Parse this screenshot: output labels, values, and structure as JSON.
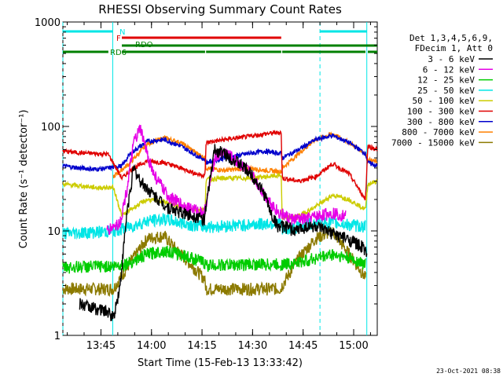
{
  "chart_data": {
    "type": "line",
    "title": "RHESSI Observing Summary Count Rates",
    "xlabel": "Start Time (15-Feb-13 13:33:42)",
    "ylabel": "Count Rate (s⁻¹ detector⁻¹)",
    "yscale": "log",
    "ylim": [
      1,
      1000
    ],
    "xlim_minutes": [
      0,
      93.3
    ],
    "x_ticks": [
      "13:45",
      "14:00",
      "14:15",
      "14:30",
      "14:45",
      "15:00"
    ],
    "y_ticks": [
      "1",
      "10",
      "100",
      "1000"
    ],
    "legend_header": [
      "Det 1,3,4,5,6,9,",
      "FDecim 1, Att 0"
    ],
    "legend_position": "right",
    "timestamp": "23-Oct-2021 08:38",
    "flags": [
      {
        "label": "N",
        "color": "#00e6e6",
        "segments": [
          [
            0,
            14.8
          ],
          [
            76.3,
            90.2
          ]
        ]
      },
      {
        "label": "F",
        "color": "#e00000",
        "segments": [
          [
            17.5,
            64.8
          ]
        ]
      },
      {
        "label": "RDO",
        "color": "#008000",
        "segments": [
          [
            17.5,
            93.3
          ]
        ]
      },
      {
        "label": "RD6",
        "color": "#008000",
        "segments": [
          [
            0,
            13.5
          ],
          [
            17.5,
            42.2
          ],
          [
            42.5,
            64.8
          ],
          [
            65.1,
            89.8
          ],
          [
            90.5,
            93.3
          ]
        ]
      }
    ],
    "night_boundaries": [
      [
        0,
        14.8
      ],
      [
        76.3,
        90.2
      ]
    ],
    "series": [
      {
        "name": "3 - 6 keV",
        "color": "#000000",
        "x": [
          5,
          13,
          15,
          17,
          19,
          21,
          23,
          27,
          31,
          35,
          39,
          42,
          45,
          48,
          52,
          56,
          60,
          62,
          64,
          66,
          69,
          72,
          75,
          78,
          82,
          86,
          89,
          90.3
        ],
        "y": [
          2.0,
          1.7,
          1.5,
          3.0,
          15.0,
          40.0,
          30.0,
          22.0,
          17.0,
          15.0,
          14.0,
          13.0,
          60.0,
          55.0,
          45.0,
          35.0,
          22.0,
          14.0,
          11.0,
          11.0,
          10.0,
          11.0,
          11.0,
          10.0,
          9.0,
          8.0,
          7.0,
          6.0
        ]
      },
      {
        "name": "6 - 12 keV",
        "color": "#e600e6",
        "x": [
          13,
          15,
          17,
          19,
          21,
          23,
          25,
          27,
          31,
          35,
          39,
          42,
          45,
          48,
          52,
          56,
          60,
          64,
          68,
          72,
          76,
          80,
          84
        ],
        "y": [
          10.0,
          11.0,
          12.0,
          25.0,
          70.0,
          95.0,
          55.0,
          35.0,
          22.0,
          18.0,
          16.0,
          15.0,
          50.0,
          58.0,
          45.0,
          35.0,
          22.0,
          15.0,
          13.0,
          13.0,
          14.0,
          15.0,
          14.0
        ]
      },
      {
        "name": "12 - 25 keV",
        "color": "#00cc00",
        "x": [
          0,
          10,
          15,
          20,
          25,
          30,
          35,
          42,
          42.5,
          55,
          64.8,
          65,
          70,
          75,
          80,
          85,
          90
        ],
        "y": [
          4.5,
          4.6,
          4.6,
          5.0,
          6.0,
          6.5,
          6.0,
          5.0,
          4.7,
          4.8,
          4.8,
          4.8,
          5.0,
          5.5,
          6.0,
          5.5,
          4.8
        ]
      },
      {
        "name": "25 - 50 keV",
        "color": "#00e6e6",
        "x": [
          0,
          10,
          15,
          20,
          25,
          30,
          35,
          42,
          42.5,
          55,
          64.8,
          65,
          70,
          75,
          80,
          85,
          90
        ],
        "y": [
          9.5,
          9.8,
          10.0,
          11.0,
          12.5,
          13.0,
          12.0,
          11.0,
          11.0,
          11.5,
          12.0,
          10.0,
          11.0,
          12.0,
          12.0,
          11.5,
          11.0
        ]
      },
      {
        "name": "50 - 100 keV",
        "color": "#cccc00",
        "x": [
          0,
          5,
          10,
          15,
          17.5,
          20,
          25,
          30,
          35,
          40,
          42.2,
          42.5,
          48,
          55,
          60,
          64.8,
          65.1,
          70,
          75,
          80,
          85,
          89.8,
          90.5,
          93.3
        ],
        "y": [
          28,
          27,
          26,
          26,
          14,
          16,
          20,
          19,
          17,
          16,
          16,
          31,
          32,
          32,
          33,
          34,
          13,
          14,
          17,
          22,
          20,
          16,
          28,
          30
        ]
      },
      {
        "name": "100 - 300 keV",
        "color": "#e00000",
        "x": [
          0,
          5,
          10,
          13.5,
          17.5,
          20,
          25,
          30,
          35,
          40,
          42.2,
          42.5,
          48,
          55,
          60,
          64.8,
          65.1,
          70,
          75,
          80,
          85,
          89.8,
          90.5,
          93.3
        ],
        "y": [
          58,
          56,
          55,
          54,
          32,
          38,
          47,
          45,
          40,
          35,
          34,
          70,
          75,
          80,
          85,
          88,
          32,
          30,
          33,
          44,
          35,
          20,
          65,
          60
        ]
      },
      {
        "name": "300 - 800 keV",
        "color": "#0000cc",
        "x": [
          0,
          5,
          10,
          13.5,
          17.5,
          20,
          25,
          30,
          35,
          40,
          42.2,
          42.5,
          48,
          55,
          60,
          64.8,
          65.1,
          70,
          75,
          80,
          85,
          89.8,
          90.5,
          93.3
        ],
        "y": [
          42,
          40,
          39,
          40,
          42,
          55,
          72,
          75,
          65,
          52,
          48,
          45,
          50,
          55,
          58,
          55,
          50,
          60,
          75,
          82,
          70,
          55,
          45,
          42
        ]
      },
      {
        "name": "800 - 7000 keV",
        "color": "#ff8000",
        "x": [
          15,
          20,
          25,
          30,
          35,
          40,
          42.2,
          42.5,
          48,
          55,
          60,
          64.8,
          65.1,
          70,
          75,
          80,
          85,
          89.8,
          90.5,
          93.3
        ],
        "y": [
          33,
          45,
          68,
          78,
          70,
          55,
          50,
          40,
          38,
          40,
          38,
          37,
          40,
          55,
          75,
          85,
          70,
          55,
          48,
          46
        ]
      },
      {
        "name": "7000 - 15000 keV",
        "color": "#8c7a00",
        "x": [
          0,
          10,
          15,
          20,
          25,
          30,
          35,
          42,
          42.5,
          55,
          64.8,
          65,
          70,
          75,
          80,
          85,
          90
        ],
        "y": [
          2.8,
          2.8,
          2.8,
          5.0,
          8.5,
          9.0,
          6.0,
          3.5,
          2.8,
          2.8,
          2.8,
          3.0,
          5.5,
          8.5,
          10.0,
          6.0,
          3.5
        ]
      }
    ]
  }
}
